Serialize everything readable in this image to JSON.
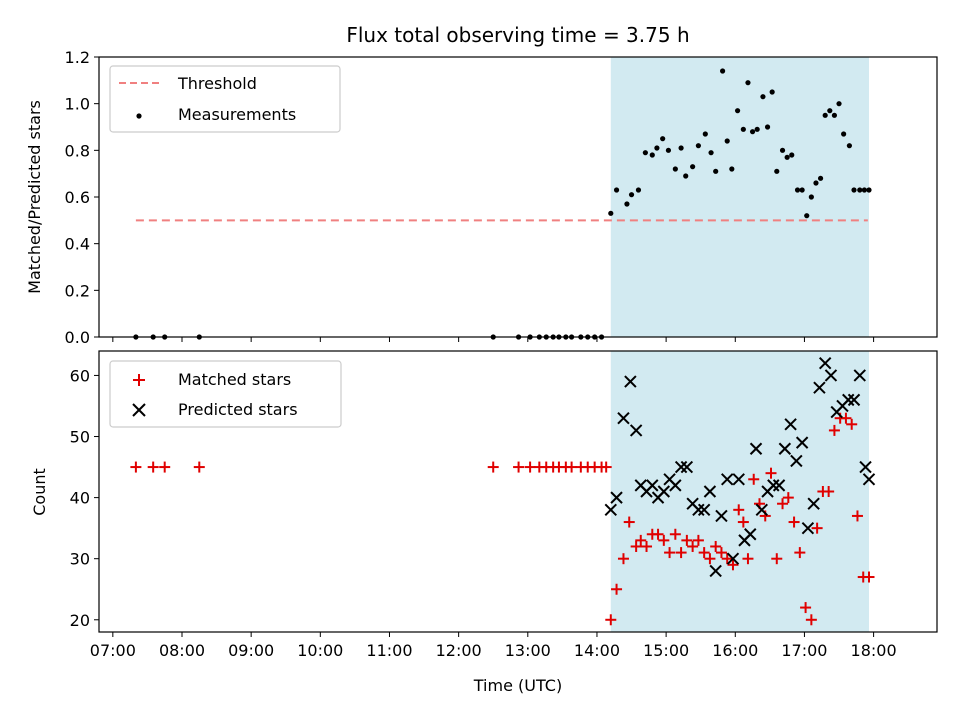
{
  "chart_data": [
    {
      "type": "scatter",
      "title": "Flux total observing time = 3.75 h",
      "xlabel": "",
      "ylabel": "Matched/Predicted stars",
      "xlim": [
        "06:48",
        "18:55"
      ],
      "ylim": [
        0,
        1.2
      ],
      "yticks": [
        "0.0",
        "0.2",
        "0.4",
        "0.6",
        "0.8",
        "1.0",
        "1.2"
      ],
      "grid": false,
      "legend_position": "top-left",
      "shaded_span": {
        "x": [
          "14:12",
          "17:56"
        ],
        "color": "#add8e6"
      },
      "threshold": {
        "name": "Threshold",
        "value": 0.5,
        "x": [
          "07:20",
          "17:55"
        ],
        "color": "#f08080",
        "style": "dashed"
      },
      "series": [
        {
          "name": "Measurements",
          "color": "#000000",
          "marker": "dot",
          "x": [
            "07:20",
            "07:35",
            "07:45",
            "08:15",
            "12:30",
            "12:52",
            "13:02",
            "13:10",
            "13:16",
            "13:22",
            "13:27",
            "13:33",
            "13:38",
            "13:46",
            "13:52",
            "13:58",
            "14:04",
            "14:12",
            "14:17",
            "14:26",
            "14:30",
            "14:36",
            "14:42",
            "14:48",
            "14:52",
            "14:57",
            "15:02",
            "15:08",
            "15:13",
            "15:17",
            "15:23",
            "15:28",
            "15:34",
            "15:39",
            "15:43",
            "15:49",
            "15:53",
            "15:57",
            "16:02",
            "16:07",
            "16:11",
            "16:15",
            "16:19",
            "16:24",
            "16:28",
            "16:32",
            "16:36",
            "16:41",
            "16:45",
            "16:49",
            "16:54",
            "16:58",
            "17:02",
            "17:06",
            "17:10",
            "17:14",
            "17:18",
            "17:22",
            "17:26",
            "17:30",
            "17:34",
            "17:39",
            "17:43",
            "17:48",
            "17:52",
            "17:56"
          ],
          "y": [
            0,
            0,
            0,
            0,
            0,
            0,
            0,
            0,
            0,
            0,
            0,
            0,
            0,
            0,
            0,
            0,
            0,
            0.53,
            0.63,
            0.57,
            0.61,
            0.63,
            0.79,
            0.78,
            0.81,
            0.85,
            0.8,
            0.72,
            0.81,
            0.69,
            0.73,
            0.82,
            0.87,
            0.79,
            0.71,
            1.14,
            0.84,
            0.72,
            0.97,
            0.89,
            1.09,
            0.88,
            0.89,
            1.03,
            0.9,
            1.05,
            0.71,
            0.8,
            0.77,
            0.78,
            0.63,
            0.63,
            0.52,
            0.6,
            0.66,
            0.68,
            0.95,
            0.97,
            0.95,
            1.0,
            0.87,
            0.82,
            0.63,
            0.63,
            0.63,
            0.63
          ]
        }
      ]
    },
    {
      "type": "scatter",
      "title": "",
      "xlabel": "Time (UTC)",
      "ylabel": "Count",
      "xlim": [
        "06:48",
        "18:55"
      ],
      "ylim": [
        18,
        64
      ],
      "yticks": [
        "20",
        "30",
        "40",
        "50",
        "60"
      ],
      "xticks": [
        "07:00",
        "08:00",
        "09:00",
        "10:00",
        "11:00",
        "12:00",
        "13:00",
        "14:00",
        "15:00",
        "16:00",
        "17:00",
        "18:00"
      ],
      "grid": false,
      "legend_position": "top-left",
      "shaded_span": {
        "x": [
          "14:12",
          "17:56"
        ],
        "color": "#add8e6"
      },
      "series": [
        {
          "name": "Matched stars",
          "color": "#e00000",
          "marker": "plus",
          "x": [
            "07:20",
            "07:35",
            "07:45",
            "08:15",
            "12:30",
            "12:52",
            "13:02",
            "13:10",
            "13:16",
            "13:22",
            "13:27",
            "13:33",
            "13:38",
            "13:46",
            "13:52",
            "13:58",
            "14:04",
            "14:08",
            "14:12",
            "14:17",
            "14:23",
            "14:28",
            "14:34",
            "14:38",
            "14:43",
            "14:48",
            "14:53",
            "14:58",
            "15:03",
            "15:08",
            "15:13",
            "15:18",
            "15:23",
            "15:28",
            "15:33",
            "15:38",
            "15:43",
            "15:48",
            "15:53",
            "15:58",
            "16:03",
            "16:07",
            "16:11",
            "16:16",
            "16:21",
            "16:26",
            "16:31",
            "16:36",
            "16:41",
            "16:46",
            "16:51",
            "16:56",
            "17:01",
            "17:06",
            "17:11",
            "17:16",
            "17:21",
            "17:26",
            "17:31",
            "17:36",
            "17:41",
            "17:46",
            "17:51",
            "17:56"
          ],
          "y": [
            45,
            45,
            45,
            45,
            45,
            45,
            45,
            45,
            45,
            45,
            45,
            45,
            45,
            45,
            45,
            45,
            45,
            45,
            20,
            25,
            30,
            36,
            32,
            33,
            32,
            34,
            34,
            33,
            31,
            34,
            31,
            33,
            32,
            33,
            31,
            30,
            32,
            31,
            30,
            29,
            38,
            36,
            30,
            43,
            39,
            37,
            44,
            30,
            39,
            40,
            36,
            31,
            22,
            20,
            35,
            41,
            41,
            51,
            53,
            53,
            52,
            37,
            27,
            27
          ]
        },
        {
          "name": "Predicted stars",
          "color": "#000000",
          "marker": "cross",
          "x": [
            "14:12",
            "14:17",
            "14:23",
            "14:29",
            "14:34",
            "14:38",
            "14:43",
            "14:48",
            "14:53",
            "14:58",
            "15:03",
            "15:08",
            "15:13",
            "15:18",
            "15:23",
            "15:28",
            "15:33",
            "15:38",
            "15:43",
            "15:48",
            "15:53",
            "15:58",
            "16:03",
            "16:08",
            "16:13",
            "16:18",
            "16:23",
            "16:28",
            "16:33",
            "16:38",
            "16:43",
            "16:48",
            "16:53",
            "16:58",
            "17:03",
            "17:08",
            "17:13",
            "17:18",
            "17:23",
            "17:28",
            "17:33",
            "17:38",
            "17:43",
            "17:48",
            "17:53",
            "17:56"
          ],
          "y": [
            38,
            40,
            53,
            59,
            51,
            42,
            41,
            42,
            40,
            41,
            43,
            42,
            45,
            45,
            39,
            38,
            38,
            41,
            28,
            37,
            43,
            30,
            43,
            33,
            34,
            48,
            38,
            41,
            42,
            42,
            48,
            52,
            46,
            49,
            35,
            39,
            58,
            62,
            60,
            54,
            55,
            56,
            56,
            60,
            45,
            43
          ]
        }
      ]
    }
  ]
}
